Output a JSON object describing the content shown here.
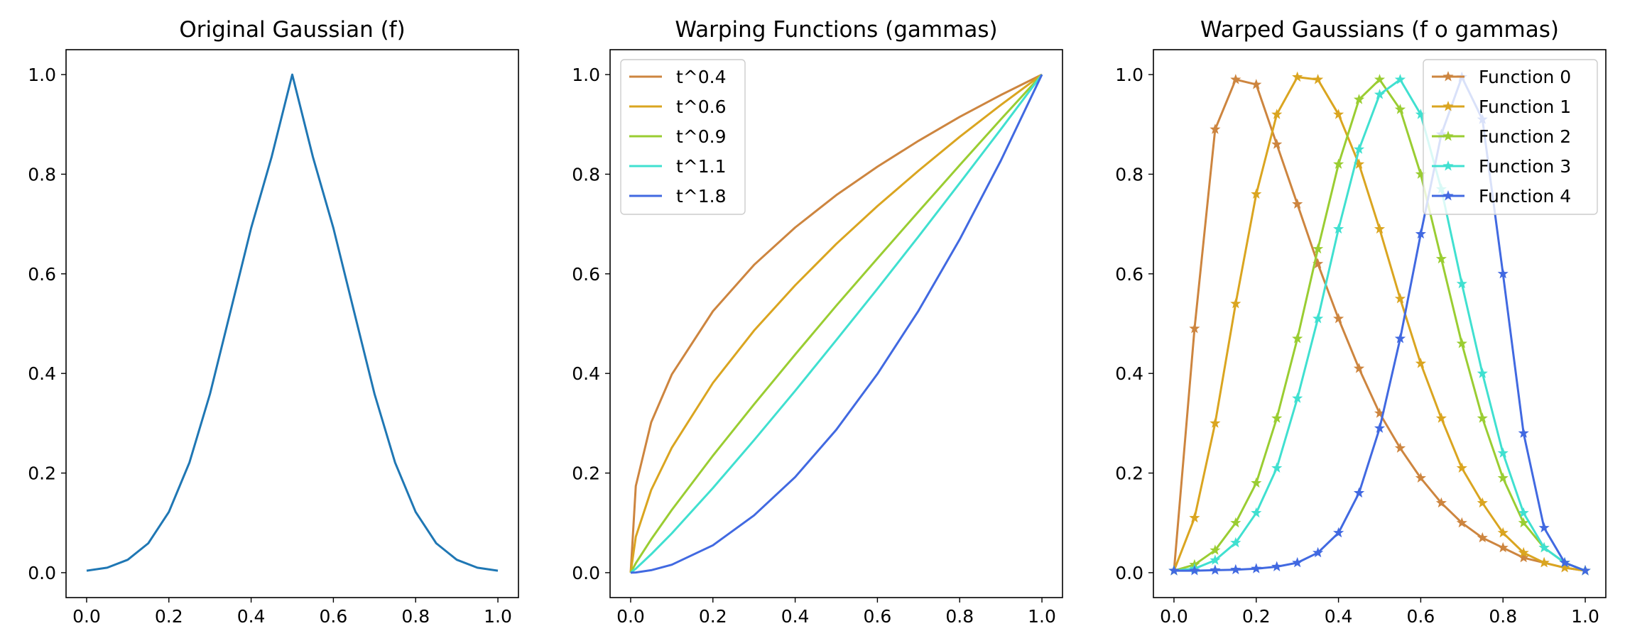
{
  "chart_data": [
    {
      "type": "line",
      "title": "Original Gaussian (f)",
      "xlabel": "",
      "ylabel": "",
      "xlim": [
        -0.05,
        1.05
      ],
      "ylim": [
        -0.05,
        1.05
      ],
      "xticks": [
        "0.0",
        "0.2",
        "0.4",
        "0.6",
        "0.8",
        "1.0"
      ],
      "yticks": [
        "0.0",
        "0.2",
        "0.4",
        "0.6",
        "0.8",
        "1.0"
      ],
      "grid": false,
      "legend": null,
      "series": [
        {
          "color": "#1f77b4",
          "marker": "none",
          "x": [
            0.0,
            0.05,
            0.1,
            0.15,
            0.2,
            0.25,
            0.3,
            0.35,
            0.4,
            0.45,
            0.5,
            0.55,
            0.6,
            0.65,
            0.7,
            0.75,
            0.8,
            0.85,
            0.9,
            0.95,
            1.0
          ],
          "y": [
            0.004,
            0.01,
            0.026,
            0.059,
            0.122,
            0.221,
            0.359,
            0.525,
            0.692,
            0.835,
            1.0,
            0.835,
            0.692,
            0.525,
            0.359,
            0.221,
            0.122,
            0.059,
            0.026,
            0.01,
            0.004
          ]
        }
      ]
    },
    {
      "type": "line",
      "title": "Warping Functions (gammas)",
      "xlabel": "",
      "ylabel": "",
      "xlim": [
        -0.05,
        1.05
      ],
      "ylim": [
        -0.05,
        1.05
      ],
      "xticks": [
        "0.0",
        "0.2",
        "0.4",
        "0.6",
        "0.8",
        "1.0"
      ],
      "yticks": [
        "0.0",
        "0.2",
        "0.4",
        "0.6",
        "0.8",
        "1.0"
      ],
      "grid": false,
      "legend": "top-left",
      "series": [
        {
          "name": "t^0.4",
          "color": "#cd853f",
          "marker": "none",
          "x": [
            0.0,
            0.0125,
            0.05,
            0.1,
            0.2,
            0.3,
            0.4,
            0.5,
            0.6,
            0.7,
            0.8,
            0.9,
            1.0
          ],
          "y": [
            0.0,
            0.174,
            0.302,
            0.398,
            0.525,
            0.618,
            0.693,
            0.758,
            0.815,
            0.867,
            0.915,
            0.959,
            1.0
          ]
        },
        {
          "name": "t^0.6",
          "color": "#daa520",
          "marker": "none",
          "x": [
            0.0,
            0.0125,
            0.05,
            0.1,
            0.2,
            0.3,
            0.4,
            0.5,
            0.6,
            0.7,
            0.8,
            0.9,
            1.0
          ],
          "y": [
            0.0,
            0.072,
            0.166,
            0.251,
            0.381,
            0.486,
            0.577,
            0.66,
            0.736,
            0.807,
            0.875,
            0.939,
            1.0
          ]
        },
        {
          "name": "t^0.9",
          "color": "#9acd32",
          "marker": "none",
          "x": [
            0.0,
            0.0125,
            0.05,
            0.1,
            0.2,
            0.3,
            0.4,
            0.5,
            0.6,
            0.7,
            0.8,
            0.9,
            1.0
          ],
          "y": [
            0.0,
            0.019,
            0.067,
            0.126,
            0.235,
            0.338,
            0.438,
            0.536,
            0.631,
            0.725,
            0.818,
            0.91,
            1.0
          ]
        },
        {
          "name": "t^1.1",
          "color": "#40e0d0",
          "marker": "none",
          "x": [
            0.0,
            0.0125,
            0.05,
            0.1,
            0.2,
            0.3,
            0.4,
            0.5,
            0.6,
            0.7,
            0.8,
            0.9,
            1.0
          ],
          "y": [
            0.0,
            0.008,
            0.037,
            0.079,
            0.17,
            0.266,
            0.365,
            0.467,
            0.57,
            0.675,
            0.782,
            0.89,
            1.0
          ]
        },
        {
          "name": "t^1.8",
          "color": "#4169e1",
          "marker": "none",
          "x": [
            0.0,
            0.0125,
            0.05,
            0.1,
            0.2,
            0.3,
            0.4,
            0.5,
            0.6,
            0.7,
            0.8,
            0.9,
            1.0
          ],
          "y": [
            0.0,
            0.0004,
            0.005,
            0.016,
            0.055,
            0.115,
            0.192,
            0.287,
            0.399,
            0.526,
            0.669,
            0.827,
            1.0
          ]
        }
      ]
    },
    {
      "type": "line",
      "title": "Warped Gaussians (f o gammas)",
      "xlabel": "",
      "ylabel": "",
      "xlim": [
        -0.05,
        1.05
      ],
      "ylim": [
        -0.05,
        1.05
      ],
      "xticks": [
        "0.0",
        "0.2",
        "0.4",
        "0.6",
        "0.8",
        "1.0"
      ],
      "yticks": [
        "0.0",
        "0.2",
        "0.4",
        "0.6",
        "0.8",
        "1.0"
      ],
      "grid": false,
      "legend": "top-right",
      "series": [
        {
          "name": "Function 0",
          "color": "#cd853f",
          "marker": "star",
          "x": [
            0.0,
            0.05,
            0.1,
            0.15,
            0.2,
            0.25,
            0.3,
            0.35,
            0.4,
            0.45,
            0.5,
            0.55,
            0.6,
            0.65,
            0.7,
            0.75,
            0.8,
            0.85,
            0.9,
            0.95,
            1.0
          ],
          "y": [
            0.004,
            0.49,
            0.89,
            0.99,
            0.98,
            0.86,
            0.74,
            0.62,
            0.51,
            0.41,
            0.32,
            0.25,
            0.19,
            0.14,
            0.1,
            0.07,
            0.05,
            0.03,
            0.02,
            0.01,
            0.004
          ]
        },
        {
          "name": "Function 1",
          "color": "#daa520",
          "marker": "star",
          "x": [
            0.0,
            0.05,
            0.1,
            0.15,
            0.2,
            0.25,
            0.3,
            0.35,
            0.4,
            0.45,
            0.5,
            0.55,
            0.6,
            0.65,
            0.7,
            0.75,
            0.8,
            0.85,
            0.9,
            0.95,
            1.0
          ],
          "y": [
            0.004,
            0.11,
            0.3,
            0.54,
            0.76,
            0.92,
            0.995,
            0.99,
            0.92,
            0.82,
            0.69,
            0.55,
            0.42,
            0.31,
            0.21,
            0.14,
            0.08,
            0.04,
            0.02,
            0.01,
            0.004
          ]
        },
        {
          "name": "Function 2",
          "color": "#9acd32",
          "marker": "star",
          "x": [
            0.0,
            0.05,
            0.1,
            0.15,
            0.2,
            0.25,
            0.3,
            0.35,
            0.4,
            0.45,
            0.5,
            0.55,
            0.6,
            0.65,
            0.7,
            0.75,
            0.8,
            0.85,
            0.9,
            0.95,
            1.0
          ],
          "y": [
            0.004,
            0.016,
            0.045,
            0.1,
            0.18,
            0.31,
            0.47,
            0.65,
            0.82,
            0.95,
            0.99,
            0.93,
            0.8,
            0.63,
            0.46,
            0.31,
            0.19,
            0.1,
            0.05,
            0.02,
            0.004
          ]
        },
        {
          "name": "Function 3",
          "color": "#40e0d0",
          "marker": "star",
          "x": [
            0.0,
            0.05,
            0.1,
            0.15,
            0.2,
            0.25,
            0.3,
            0.35,
            0.4,
            0.45,
            0.5,
            0.55,
            0.6,
            0.65,
            0.7,
            0.75,
            0.8,
            0.85,
            0.9,
            0.95,
            1.0
          ],
          "y": [
            0.004,
            0.008,
            0.025,
            0.06,
            0.12,
            0.21,
            0.35,
            0.51,
            0.69,
            0.85,
            0.96,
            0.99,
            0.92,
            0.77,
            0.58,
            0.4,
            0.24,
            0.12,
            0.05,
            0.02,
            0.004
          ]
        },
        {
          "name": "Function 4",
          "color": "#4169e1",
          "marker": "star",
          "x": [
            0.0,
            0.05,
            0.1,
            0.15,
            0.2,
            0.25,
            0.3,
            0.35,
            0.4,
            0.45,
            0.5,
            0.55,
            0.6,
            0.65,
            0.7,
            0.75,
            0.8,
            0.85,
            0.9,
            0.95,
            1.0
          ],
          "y": [
            0.004,
            0.004,
            0.005,
            0.006,
            0.008,
            0.012,
            0.02,
            0.04,
            0.08,
            0.16,
            0.29,
            0.47,
            0.68,
            0.88,
            0.995,
            0.91,
            0.6,
            0.28,
            0.09,
            0.02,
            0.004
          ]
        }
      ]
    }
  ]
}
